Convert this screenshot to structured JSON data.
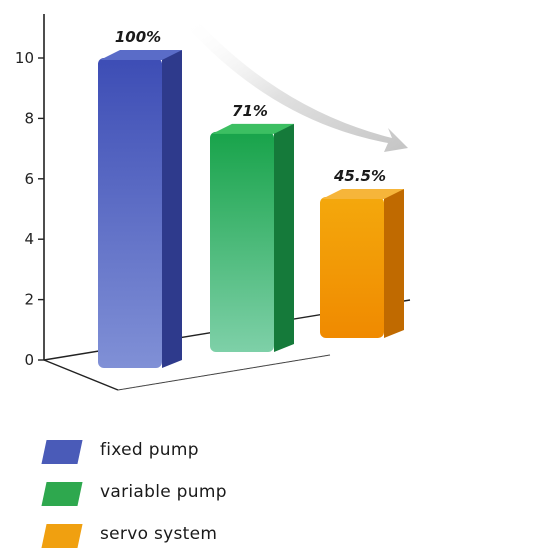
{
  "chart_data": {
    "type": "bar",
    "categories": [
      "fixed pump",
      "variable pump",
      "servo system"
    ],
    "values": [
      100,
      71,
      45.5
    ],
    "value_labels": [
      "100%",
      "71%",
      "45.5%"
    ],
    "yticks": [
      "0",
      "2",
      "4",
      "6",
      "8",
      "10"
    ],
    "ylim": [
      0,
      10
    ],
    "title": "",
    "xlabel": "",
    "ylabel": "",
    "legend_position": "bottom-left",
    "grid": false,
    "colors": [
      "#4a5bb8",
      "#2ea84e",
      "#f0a010"
    ]
  },
  "legend": [
    {
      "label": "fixed pump",
      "color": "#4a5bb8"
    },
    {
      "label": "variable pump",
      "color": "#2ea84e"
    },
    {
      "label": "servo system",
      "color": "#f0a010"
    }
  ]
}
